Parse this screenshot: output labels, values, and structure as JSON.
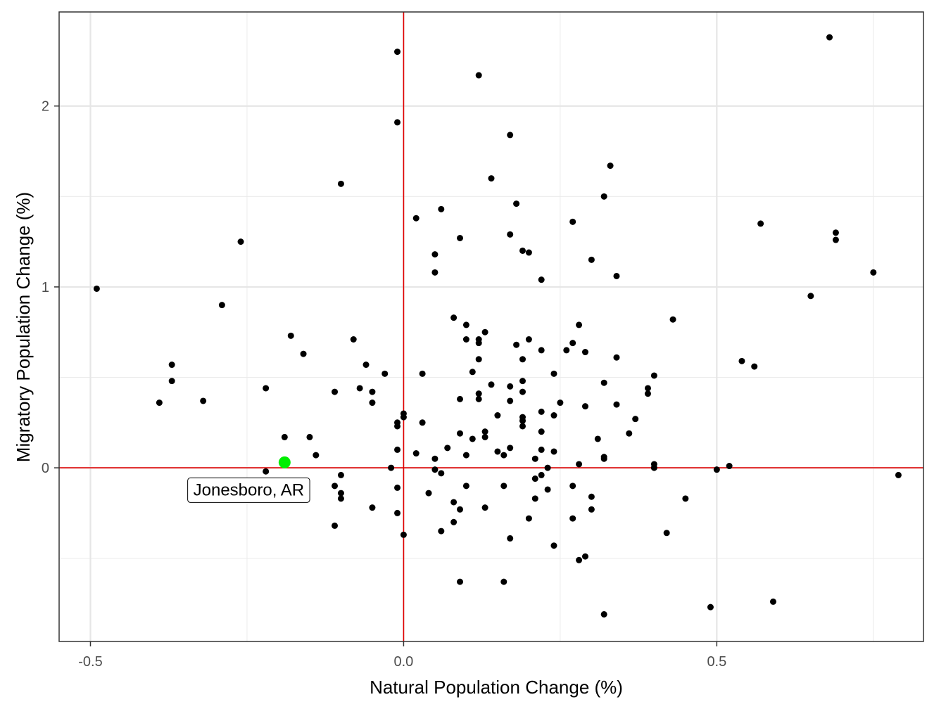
{
  "chart_data": {
    "type": "scatter",
    "xlabel": "Natural Population Change (%)",
    "ylabel": "Migratory Population Change (%)",
    "xlim": [
      -0.55,
      0.83
    ],
    "ylim": [
      -0.96,
      2.52
    ],
    "x_ticks": [
      -0.5,
      0.0,
      0.5
    ],
    "x_tick_labels": [
      "-0.5",
      "0.0",
      "0.5"
    ],
    "y_ticks": [
      0,
      1,
      2
    ],
    "y_tick_labels": [
      "0",
      "1",
      "2"
    ],
    "x_minor": [
      -0.25,
      0.25,
      0.75
    ],
    "y_minor": [
      -0.5,
      0.5,
      1.5
    ],
    "grid": true,
    "reference_lines": {
      "x": 0,
      "y": 0,
      "color": "#e00000"
    },
    "point_color": "#000000",
    "highlight_color": "#00ee00",
    "highlight": {
      "x": -0.19,
      "y": 0.03,
      "label": "Jonesboro, AR"
    },
    "points": [
      [
        -0.49,
        0.99
      ],
      [
        -0.26,
        1.25
      ],
      [
        -0.29,
        0.9
      ],
      [
        -0.37,
        0.57
      ],
      [
        -0.37,
        0.48
      ],
      [
        -0.39,
        0.36
      ],
      [
        -0.32,
        0.37
      ],
      [
        -0.22,
        0.44
      ],
      [
        -0.18,
        0.73
      ],
      [
        -0.16,
        0.63
      ],
      [
        -0.19,
        0.17
      ],
      [
        -0.15,
        0.17
      ],
      [
        -0.14,
        0.07
      ],
      [
        -0.22,
        -0.02
      ],
      [
        -0.1,
        1.57
      ],
      [
        -0.11,
        0.42
      ],
      [
        -0.08,
        0.71
      ],
      [
        -0.07,
        0.44
      ],
      [
        -0.06,
        0.57
      ],
      [
        -0.05,
        0.42
      ],
      [
        -0.05,
        0.36
      ],
      [
        -0.03,
        0.52
      ],
      [
        -0.1,
        -0.04
      ],
      [
        -0.11,
        -0.1
      ],
      [
        -0.1,
        -0.14
      ],
      [
        -0.1,
        -0.17
      ],
      [
        -0.11,
        -0.32
      ],
      [
        -0.05,
        -0.22
      ],
      [
        -0.02,
        0.0
      ],
      [
        -0.01,
        2.3
      ],
      [
        -0.01,
        1.91
      ],
      [
        -0.01,
        0.25
      ],
      [
        -0.01,
        0.23
      ],
      [
        0.0,
        0.3
      ],
      [
        0.0,
        0.28
      ],
      [
        -0.01,
        0.1
      ],
      [
        -0.01,
        -0.11
      ],
      [
        -0.01,
        -0.25
      ],
      [
        0.0,
        -0.37
      ],
      [
        0.02,
        1.38
      ],
      [
        0.03,
        0.52
      ],
      [
        0.03,
        0.25
      ],
      [
        0.02,
        0.08
      ],
      [
        0.04,
        -0.14
      ],
      [
        0.05,
        1.18
      ],
      [
        0.05,
        1.08
      ],
      [
        0.06,
        1.43
      ],
      [
        0.05,
        0.05
      ],
      [
        0.05,
        -0.01
      ],
      [
        0.06,
        -0.03
      ],
      [
        0.06,
        -0.35
      ],
      [
        0.07,
        0.11
      ],
      [
        0.08,
        0.83
      ],
      [
        0.09,
        1.27
      ],
      [
        0.09,
        0.38
      ],
      [
        0.09,
        0.19
      ],
      [
        0.08,
        -0.19
      ],
      [
        0.09,
        -0.23
      ],
      [
        0.08,
        -0.3
      ],
      [
        0.09,
        -0.63
      ],
      [
        0.1,
        0.79
      ],
      [
        0.1,
        0.71
      ],
      [
        0.11,
        0.53
      ],
      [
        0.1,
        0.07
      ],
      [
        0.1,
        -0.1
      ],
      [
        0.12,
        2.17
      ],
      [
        0.12,
        0.71
      ],
      [
        0.12,
        0.69
      ],
      [
        0.12,
        0.6
      ],
      [
        0.12,
        0.41
      ],
      [
        0.12,
        0.38
      ],
      [
        0.11,
        0.16
      ],
      [
        0.13,
        0.75
      ],
      [
        0.13,
        0.2
      ],
      [
        0.13,
        0.17
      ],
      [
        0.13,
        -0.22
      ],
      [
        0.14,
        1.6
      ],
      [
        0.14,
        0.46
      ],
      [
        0.15,
        0.29
      ],
      [
        0.15,
        0.09
      ],
      [
        0.16,
        0.07
      ],
      [
        0.16,
        -0.1
      ],
      [
        0.16,
        -0.63
      ],
      [
        0.17,
        1.84
      ],
      [
        0.17,
        1.29
      ],
      [
        0.17,
        0.45
      ],
      [
        0.17,
        0.37
      ],
      [
        0.17,
        0.11
      ],
      [
        0.17,
        -0.39
      ],
      [
        0.18,
        1.46
      ],
      [
        0.18,
        0.68
      ],
      [
        0.19,
        1.2
      ],
      [
        0.2,
        1.19
      ],
      [
        0.19,
        0.6
      ],
      [
        0.19,
        0.48
      ],
      [
        0.19,
        0.42
      ],
      [
        0.19,
        0.28
      ],
      [
        0.19,
        0.26
      ],
      [
        0.19,
        0.23
      ],
      [
        0.2,
        0.71
      ],
      [
        0.21,
        0.05
      ],
      [
        0.21,
        -0.06
      ],
      [
        0.21,
        -0.17
      ],
      [
        0.2,
        -0.28
      ],
      [
        0.22,
        1.04
      ],
      [
        0.22,
        0.65
      ],
      [
        0.22,
        0.31
      ],
      [
        0.22,
        0.2
      ],
      [
        0.22,
        0.1
      ],
      [
        0.22,
        -0.04
      ],
      [
        0.23,
        0.0
      ],
      [
        0.23,
        -0.12
      ],
      [
        0.24,
        0.52
      ],
      [
        0.24,
        0.29
      ],
      [
        0.24,
        0.09
      ],
      [
        0.24,
        -0.43
      ],
      [
        0.25,
        0.36
      ],
      [
        0.26,
        0.65
      ],
      [
        0.27,
        1.36
      ],
      [
        0.27,
        0.69
      ],
      [
        0.27,
        -0.1
      ],
      [
        0.27,
        -0.28
      ],
      [
        0.28,
        0.79
      ],
      [
        0.28,
        0.02
      ],
      [
        0.28,
        -0.51
      ],
      [
        0.29,
        0.64
      ],
      [
        0.29,
        0.34
      ],
      [
        0.29,
        -0.49
      ],
      [
        0.3,
        1.15
      ],
      [
        0.3,
        -0.16
      ],
      [
        0.3,
        -0.23
      ],
      [
        0.31,
        0.16
      ],
      [
        0.32,
        1.5
      ],
      [
        0.32,
        0.47
      ],
      [
        0.32,
        0.06
      ],
      [
        0.32,
        0.05
      ],
      [
        0.32,
        -0.81
      ],
      [
        0.33,
        1.67
      ],
      [
        0.34,
        1.06
      ],
      [
        0.34,
        0.61
      ],
      [
        0.34,
        0.35
      ],
      [
        0.36,
        0.19
      ],
      [
        0.37,
        0.27
      ],
      [
        0.39,
        0.44
      ],
      [
        0.39,
        0.41
      ],
      [
        0.4,
        0.51
      ],
      [
        0.4,
        0.02
      ],
      [
        0.4,
        0.0
      ],
      [
        0.42,
        -0.36
      ],
      [
        0.43,
        0.82
      ],
      [
        0.45,
        -0.17
      ],
      [
        0.49,
        -0.77
      ],
      [
        0.5,
        -0.01
      ],
      [
        0.52,
        0.01
      ],
      [
        0.54,
        0.59
      ],
      [
        0.56,
        0.56
      ],
      [
        0.57,
        1.35
      ],
      [
        0.59,
        -0.74
      ],
      [
        0.65,
        0.95
      ],
      [
        0.68,
        2.38
      ],
      [
        0.69,
        1.3
      ],
      [
        0.69,
        1.26
      ],
      [
        0.75,
        1.08
      ],
      [
        0.79,
        -0.04
      ]
    ]
  }
}
